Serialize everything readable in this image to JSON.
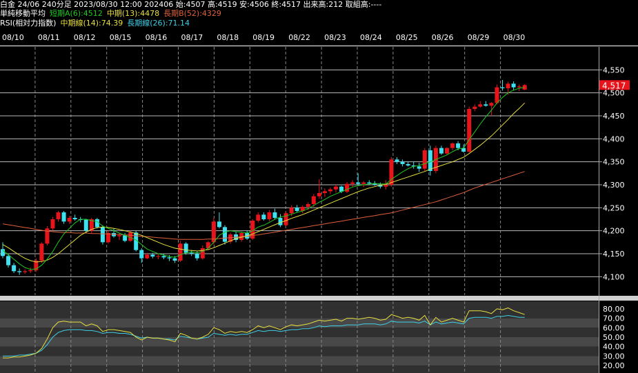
{
  "header": {
    "quote_label": "白金 24/06 240分足 2023/08/30 12:00 202406 始:4507 高:4519 安:4506 終:4517 出来高:212 取組高:----",
    "ma_title": "単純移動平均",
    "ma_short": "短期A(6):4512",
    "ma_mid": "中期(13):4478",
    "ma_long": "長期B(52):4329",
    "rsi_title": "RSI(相対力指数)",
    "rsi_mid": "中期線(14):74.39",
    "rsi_long": "長期線(26):71.14"
  },
  "colors": {
    "up": "#e8141c",
    "down": "#3fe0f0",
    "ma_short": "#1ec81e",
    "ma_mid": "#e8e040",
    "ma_long": "#e0603c",
    "rsi_mid": "#e8e040",
    "rsi_long": "#3fd0e8",
    "price_tag": "#e8141c"
  },
  "chart_data": [
    {
      "type": "candlestick",
      "dates": [
        "08/10",
        "08/11",
        "08/12",
        "08/15",
        "08/16",
        "08/17",
        "08/18",
        "08/19",
        "08/22",
        "08/23",
        "08/24",
        "08/25",
        "08/26",
        "08/29",
        "08/30"
      ],
      "y_ticks": [
        4100,
        4150,
        4200,
        4250,
        4300,
        4350,
        4400,
        4450,
        4500,
        4550
      ],
      "ylim": [
        4060,
        4600
      ],
      "last_price_label": "4,517",
      "last_price": 4517,
      "candles": [
        [
          4160,
          4175,
          4140,
          4145
        ],
        [
          4145,
          4150,
          4120,
          4125
        ],
        [
          4125,
          4130,
          4108,
          4112
        ],
        [
          4112,
          4118,
          4104,
          4110
        ],
        [
          4110,
          4116,
          4106,
          4112
        ],
        [
          4112,
          4120,
          4108,
          4114
        ],
        [
          4114,
          4140,
          4110,
          4135
        ],
        [
          4135,
          4175,
          4130,
          4172
        ],
        [
          4172,
          4210,
          4168,
          4205
        ],
        [
          4205,
          4230,
          4200,
          4225
        ],
        [
          4225,
          4243,
          4220,
          4240
        ],
        [
          4240,
          4243,
          4215,
          4220
        ],
        [
          4220,
          4232,
          4215,
          4228
        ],
        [
          4228,
          4235,
          4222,
          4225
        ],
        [
          4225,
          4230,
          4218,
          4224
        ],
        [
          4224,
          4226,
          4195,
          4200
        ],
        [
          4200,
          4228,
          4195,
          4225
        ],
        [
          4225,
          4228,
          4205,
          4208
        ],
        [
          4208,
          4212,
          4170,
          4175
        ],
        [
          4175,
          4200,
          4172,
          4195
        ],
        [
          4195,
          4205,
          4185,
          4188
        ],
        [
          4188,
          4195,
          4180,
          4190
        ],
        [
          4190,
          4195,
          4175,
          4178
        ],
        [
          4178,
          4200,
          4176,
          4196
        ],
        [
          4196,
          4200,
          4155,
          4158
        ],
        [
          4158,
          4162,
          4130,
          4140
        ],
        [
          4140,
          4152,
          4138,
          4148
        ],
        [
          4148,
          4152,
          4140,
          4144
        ],
        [
          4144,
          4150,
          4138,
          4145
        ],
        [
          4145,
          4150,
          4138,
          4142
        ],
        [
          4142,
          4147,
          4134,
          4140
        ],
        [
          4140,
          4145,
          4130,
          4135
        ],
        [
          4135,
          4178,
          4132,
          4172
        ],
        [
          4172,
          4175,
          4148,
          4152
        ],
        [
          4152,
          4158,
          4145,
          4150
        ],
        [
          4150,
          4155,
          4135,
          4140
        ],
        [
          4140,
          4168,
          4137,
          4162
        ],
        [
          4162,
          4178,
          4158,
          4175
        ],
        [
          4175,
          4228,
          4170,
          4220
        ],
        [
          4220,
          4240,
          4205,
          4208
        ],
        [
          4208,
          4212,
          4170,
          4176
        ],
        [
          4176,
          4196,
          4172,
          4192
        ],
        [
          4192,
          4198,
          4175,
          4180
        ],
        [
          4180,
          4198,
          4176,
          4195
        ],
        [
          4195,
          4200,
          4180,
          4183
        ],
        [
          4183,
          4225,
          4180,
          4222
        ],
        [
          4222,
          4240,
          4218,
          4235
        ],
        [
          4235,
          4240,
          4222,
          4225
        ],
        [
          4225,
          4245,
          4220,
          4240
        ],
        [
          4240,
          4248,
          4225,
          4228
        ],
        [
          4228,
          4236,
          4208,
          4212
        ],
        [
          4212,
          4242,
          4210,
          4238
        ],
        [
          4238,
          4255,
          4232,
          4250
        ],
        [
          4250,
          4256,
          4240,
          4243
        ],
        [
          4243,
          4255,
          4238,
          4252
        ],
        [
          4252,
          4262,
          4245,
          4258
        ],
        [
          4258,
          4280,
          4252,
          4275
        ],
        [
          4275,
          4312,
          4270,
          4282
        ],
        [
          4282,
          4292,
          4274,
          4286
        ],
        [
          4286,
          4294,
          4280,
          4290
        ],
        [
          4290,
          4300,
          4283,
          4296
        ],
        [
          4296,
          4298,
          4282,
          4285
        ],
        [
          4285,
          4306,
          4282,
          4302
        ],
        [
          4302,
          4310,
          4295,
          4305
        ],
        [
          4305,
          4325,
          4298,
          4302
        ],
        [
          4302,
          4308,
          4295,
          4305
        ],
        [
          4305,
          4310,
          4300,
          4303
        ],
        [
          4303,
          4308,
          4298,
          4300
        ],
        [
          4300,
          4305,
          4292,
          4296
        ],
        [
          4296,
          4310,
          4290,
          4300
        ],
        [
          4300,
          4360,
          4296,
          4355
        ],
        [
          4355,
          4360,
          4345,
          4350
        ],
        [
          4350,
          4355,
          4340,
          4345
        ],
        [
          4345,
          4350,
          4340,
          4342
        ],
        [
          4342,
          4350,
          4335,
          4340
        ],
        [
          4340,
          4348,
          4328,
          4335
        ],
        [
          4335,
          4380,
          4330,
          4375
        ],
        [
          4375,
          4385,
          4320,
          4330
        ],
        [
          4330,
          4385,
          4325,
          4380
        ],
        [
          4380,
          4385,
          4365,
          4368
        ],
        [
          4368,
          4382,
          4365,
          4380
        ],
        [
          4380,
          4392,
          4375,
          4390
        ],
        [
          4390,
          4395,
          4375,
          4380
        ],
        [
          4380,
          4388,
          4370,
          4372
        ],
        [
          4372,
          4470,
          4370,
          4465
        ],
        [
          4465,
          4475,
          4460,
          4470
        ],
        [
          4470,
          4482,
          4468,
          4475
        ],
        [
          4475,
          4482,
          4470,
          4472
        ],
        [
          4472,
          4480,
          4450,
          4478
        ],
        [
          4478,
          4518,
          4475,
          4512
        ],
        [
          4512,
          4528,
          4505,
          4510
        ],
        [
          4510,
          4524,
          4496,
          4520
        ],
        [
          4520,
          4525,
          4505,
          4512
        ],
        [
          4512,
          4518,
          4504,
          4514
        ],
        [
          4507,
          4519,
          4506,
          4517
        ]
      ],
      "ma_short": [
        4157,
        4148,
        4138,
        4128,
        4120,
        4116,
        4117,
        4125,
        4138,
        4155,
        4175,
        4193,
        4205,
        4217,
        4225,
        4225,
        4222,
        4220,
        4210,
        4205,
        4200,
        4195,
        4190,
        4185,
        4180,
        4170,
        4160,
        4155,
        4150,
        4147,
        4144,
        4142,
        4148,
        4152,
        4154,
        4152,
        4155,
        4162,
        4175,
        4190,
        4197,
        4200,
        4198,
        4197,
        4195,
        4200,
        4208,
        4212,
        4218,
        4225,
        4230,
        4232,
        4236,
        4240,
        4243,
        4248,
        4255,
        4262,
        4268,
        4275,
        4280,
        4285,
        4290,
        4295,
        4298,
        4300,
        4302,
        4303,
        4302,
        4302,
        4312,
        4320,
        4328,
        4335,
        4340,
        4342,
        4346,
        4350,
        4355,
        4360,
        4365,
        4372,
        4378,
        4380,
        4398,
        4415,
        4432,
        4448,
        4462,
        4478,
        4490,
        4500,
        4506,
        4510,
        4512
      ],
      "ma_mid": [
        4170,
        4163,
        4155,
        4147,
        4140,
        4135,
        4132,
        4133,
        4136,
        4142,
        4150,
        4160,
        4170,
        4180,
        4190,
        4197,
        4203,
        4207,
        4208,
        4207,
        4205,
        4203,
        4200,
        4197,
        4194,
        4190,
        4185,
        4180,
        4175,
        4170,
        4166,
        4162,
        4160,
        4158,
        4157,
        4156,
        4157,
        4159,
        4163,
        4168,
        4173,
        4178,
        4183,
        4186,
        4189,
        4193,
        4198,
        4203,
        4208,
        4213,
        4218,
        4222,
        4227,
        4231,
        4235,
        4240,
        4245,
        4250,
        4255,
        4260,
        4265,
        4270,
        4275,
        4280,
        4285,
        4289,
        4293,
        4296,
        4299,
        4301,
        4305,
        4309,
        4313,
        4317,
        4321,
        4325,
        4329,
        4334,
        4338,
        4342,
        4346,
        4350,
        4355,
        4360,
        4368,
        4377,
        4386,
        4396,
        4406,
        4418,
        4430,
        4442,
        4455,
        4466,
        4478
      ],
      "ma_long": [
        4215,
        4213,
        4211,
        4209,
        4207,
        4205,
        4203,
        4201,
        4199,
        4198,
        4197,
        4196,
        4196,
        4195,
        4195,
        4195,
        4194,
        4194,
        4193,
        4193,
        4192,
        4192,
        4191,
        4190,
        4189,
        4188,
        4187,
        4186,
        4185,
        4184,
        4183,
        4182,
        4181,
        4181,
        4181,
        4181,
        4181,
        4182,
        4182,
        4183,
        4184,
        4185,
        4186,
        4187,
        4188,
        4190,
        4191,
        4193,
        4195,
        4197,
        4199,
        4201,
        4203,
        4205,
        4207,
        4209,
        4211,
        4213,
        4215,
        4217,
        4219,
        4221,
        4223,
        4225,
        4227,
        4229,
        4231,
        4233,
        4235,
        4237,
        4239,
        4242,
        4245,
        4248,
        4251,
        4254,
        4257,
        4260,
        4263,
        4267,
        4271,
        4275,
        4279,
        4283,
        4288,
        4293,
        4297,
        4301,
        4305,
        4309,
        4313,
        4317,
        4321,
        4325,
        4329
      ],
      "ma_labels": [
        "短期A(6)",
        "中期(13)",
        "長期B(52)"
      ]
    },
    {
      "type": "line",
      "title": "RSI(相対力指数)",
      "y_ticks": [
        20,
        30,
        40,
        50,
        60,
        70,
        80
      ],
      "ylim": [
        12,
        88
      ],
      "series": [
        {
          "name": "中期線(14)",
          "values": [
            28,
            28,
            29,
            29,
            30,
            31,
            33,
            38,
            48,
            60,
            66,
            67,
            66,
            66,
            66,
            62,
            64,
            62,
            56,
            58,
            58,
            57,
            56,
            55,
            50,
            47,
            50,
            49,
            49,
            48,
            47,
            45,
            54,
            52,
            49,
            48,
            50,
            53,
            60,
            58,
            54,
            56,
            55,
            56,
            55,
            58,
            62,
            60,
            62,
            60,
            58,
            61,
            63,
            62,
            63,
            64,
            66,
            68,
            67,
            68,
            69,
            67,
            70,
            70,
            69,
            70,
            71,
            70,
            68,
            69,
            74,
            72,
            70,
            71,
            70,
            68,
            73,
            63,
            71,
            66,
            68,
            70,
            68,
            66,
            78,
            78,
            78,
            77,
            75,
            80,
            79,
            81,
            78,
            76,
            74
          ]
        },
        {
          "name": "長期線(26)",
          "values": [
            30,
            30,
            30,
            31,
            31,
            32,
            33,
            36,
            42,
            50,
            55,
            57,
            58,
            58,
            58,
            57,
            57,
            56,
            54,
            55,
            55,
            54,
            54,
            53,
            51,
            49,
            50,
            49,
            49,
            48,
            48,
            47,
            51,
            50,
            49,
            48,
            49,
            50,
            54,
            53,
            52,
            53,
            52,
            53,
            53,
            55,
            57,
            56,
            57,
            57,
            56,
            57,
            58,
            58,
            59,
            59,
            60,
            62,
            61,
            62,
            62,
            62,
            63,
            63,
            63,
            64,
            64,
            64,
            63,
            64,
            67,
            66,
            66,
            66,
            66,
            65,
            67,
            63,
            66,
            64,
            65,
            66,
            65,
            64,
            70,
            71,
            71,
            71,
            70,
            72,
            72,
            73,
            72,
            71,
            71
          ]
        }
      ]
    }
  ]
}
